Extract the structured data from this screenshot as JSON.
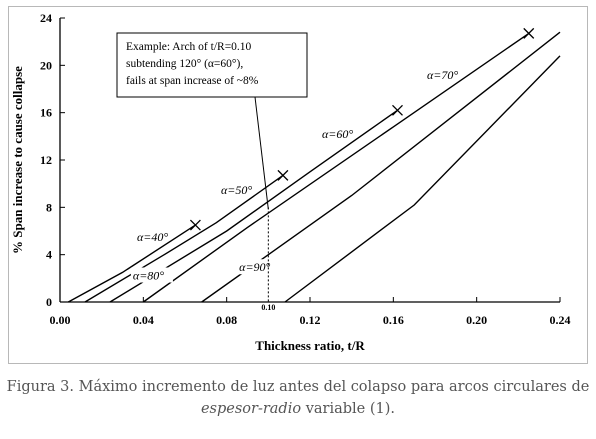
{
  "chart_data": {
    "type": "line",
    "xlabel": "Thickness ratio, t/R",
    "ylabel": "% Span increase to cause collapse",
    "xlim": [
      0,
      0.24
    ],
    "ylim": [
      0,
      24
    ],
    "x_ticks": [
      "0.00",
      "0.04",
      "0.08",
      "0.12",
      "0.16",
      "0.20",
      "0.24"
    ],
    "y_ticks": [
      "0",
      "4",
      "8",
      "12",
      "16",
      "20",
      "24"
    ],
    "grid": false,
    "series": [
      {
        "name": "α=40°",
        "points": [
          [
            0.004,
            0
          ],
          [
            0.03,
            2.5
          ],
          [
            0.065,
            6.5
          ]
        ],
        "end_marker": "x"
      },
      {
        "name": "α=50°",
        "points": [
          [
            0.012,
            0
          ],
          [
            0.05,
            4.0
          ],
          [
            0.075,
            6.7
          ],
          [
            0.107,
            10.7
          ]
        ],
        "end_marker": "x"
      },
      {
        "name": "α=60°",
        "points": [
          [
            0.024,
            0
          ],
          [
            0.08,
            6.0
          ],
          [
            0.12,
            11.0
          ],
          [
            0.162,
            16.2
          ]
        ],
        "end_marker": "x"
      },
      {
        "name": "α=70°",
        "points": [
          [
            0.04,
            0
          ],
          [
            0.09,
            6.3
          ],
          [
            0.16,
            14.8
          ],
          [
            0.225,
            22.7
          ]
        ],
        "end_marker": "x"
      },
      {
        "name": "α=80°",
        "points": [
          [
            0.068,
            0
          ],
          [
            0.14,
            9.0
          ],
          [
            0.24,
            22.8
          ]
        ],
        "end_marker": "none"
      },
      {
        "name": "α=90°",
        "points": [
          [
            0.108,
            0
          ],
          [
            0.17,
            8.2
          ],
          [
            0.24,
            20.8
          ]
        ],
        "end_marker": "none"
      }
    ],
    "annotations": {
      "example_lines": [
        "Example: Arch of t/R=0.10",
        "subtending 120° (α=60°),",
        "fails at span increase of ~8%"
      ],
      "example_point": [
        0.1,
        8
      ],
      "guide_x_label": "0.10"
    }
  },
  "caption": {
    "part1": "Figura 3. Máximo incremento de luz antes del colapso para arcos circulares de ",
    "italic": "espesor-radio",
    "part2": " variable (1)."
  }
}
